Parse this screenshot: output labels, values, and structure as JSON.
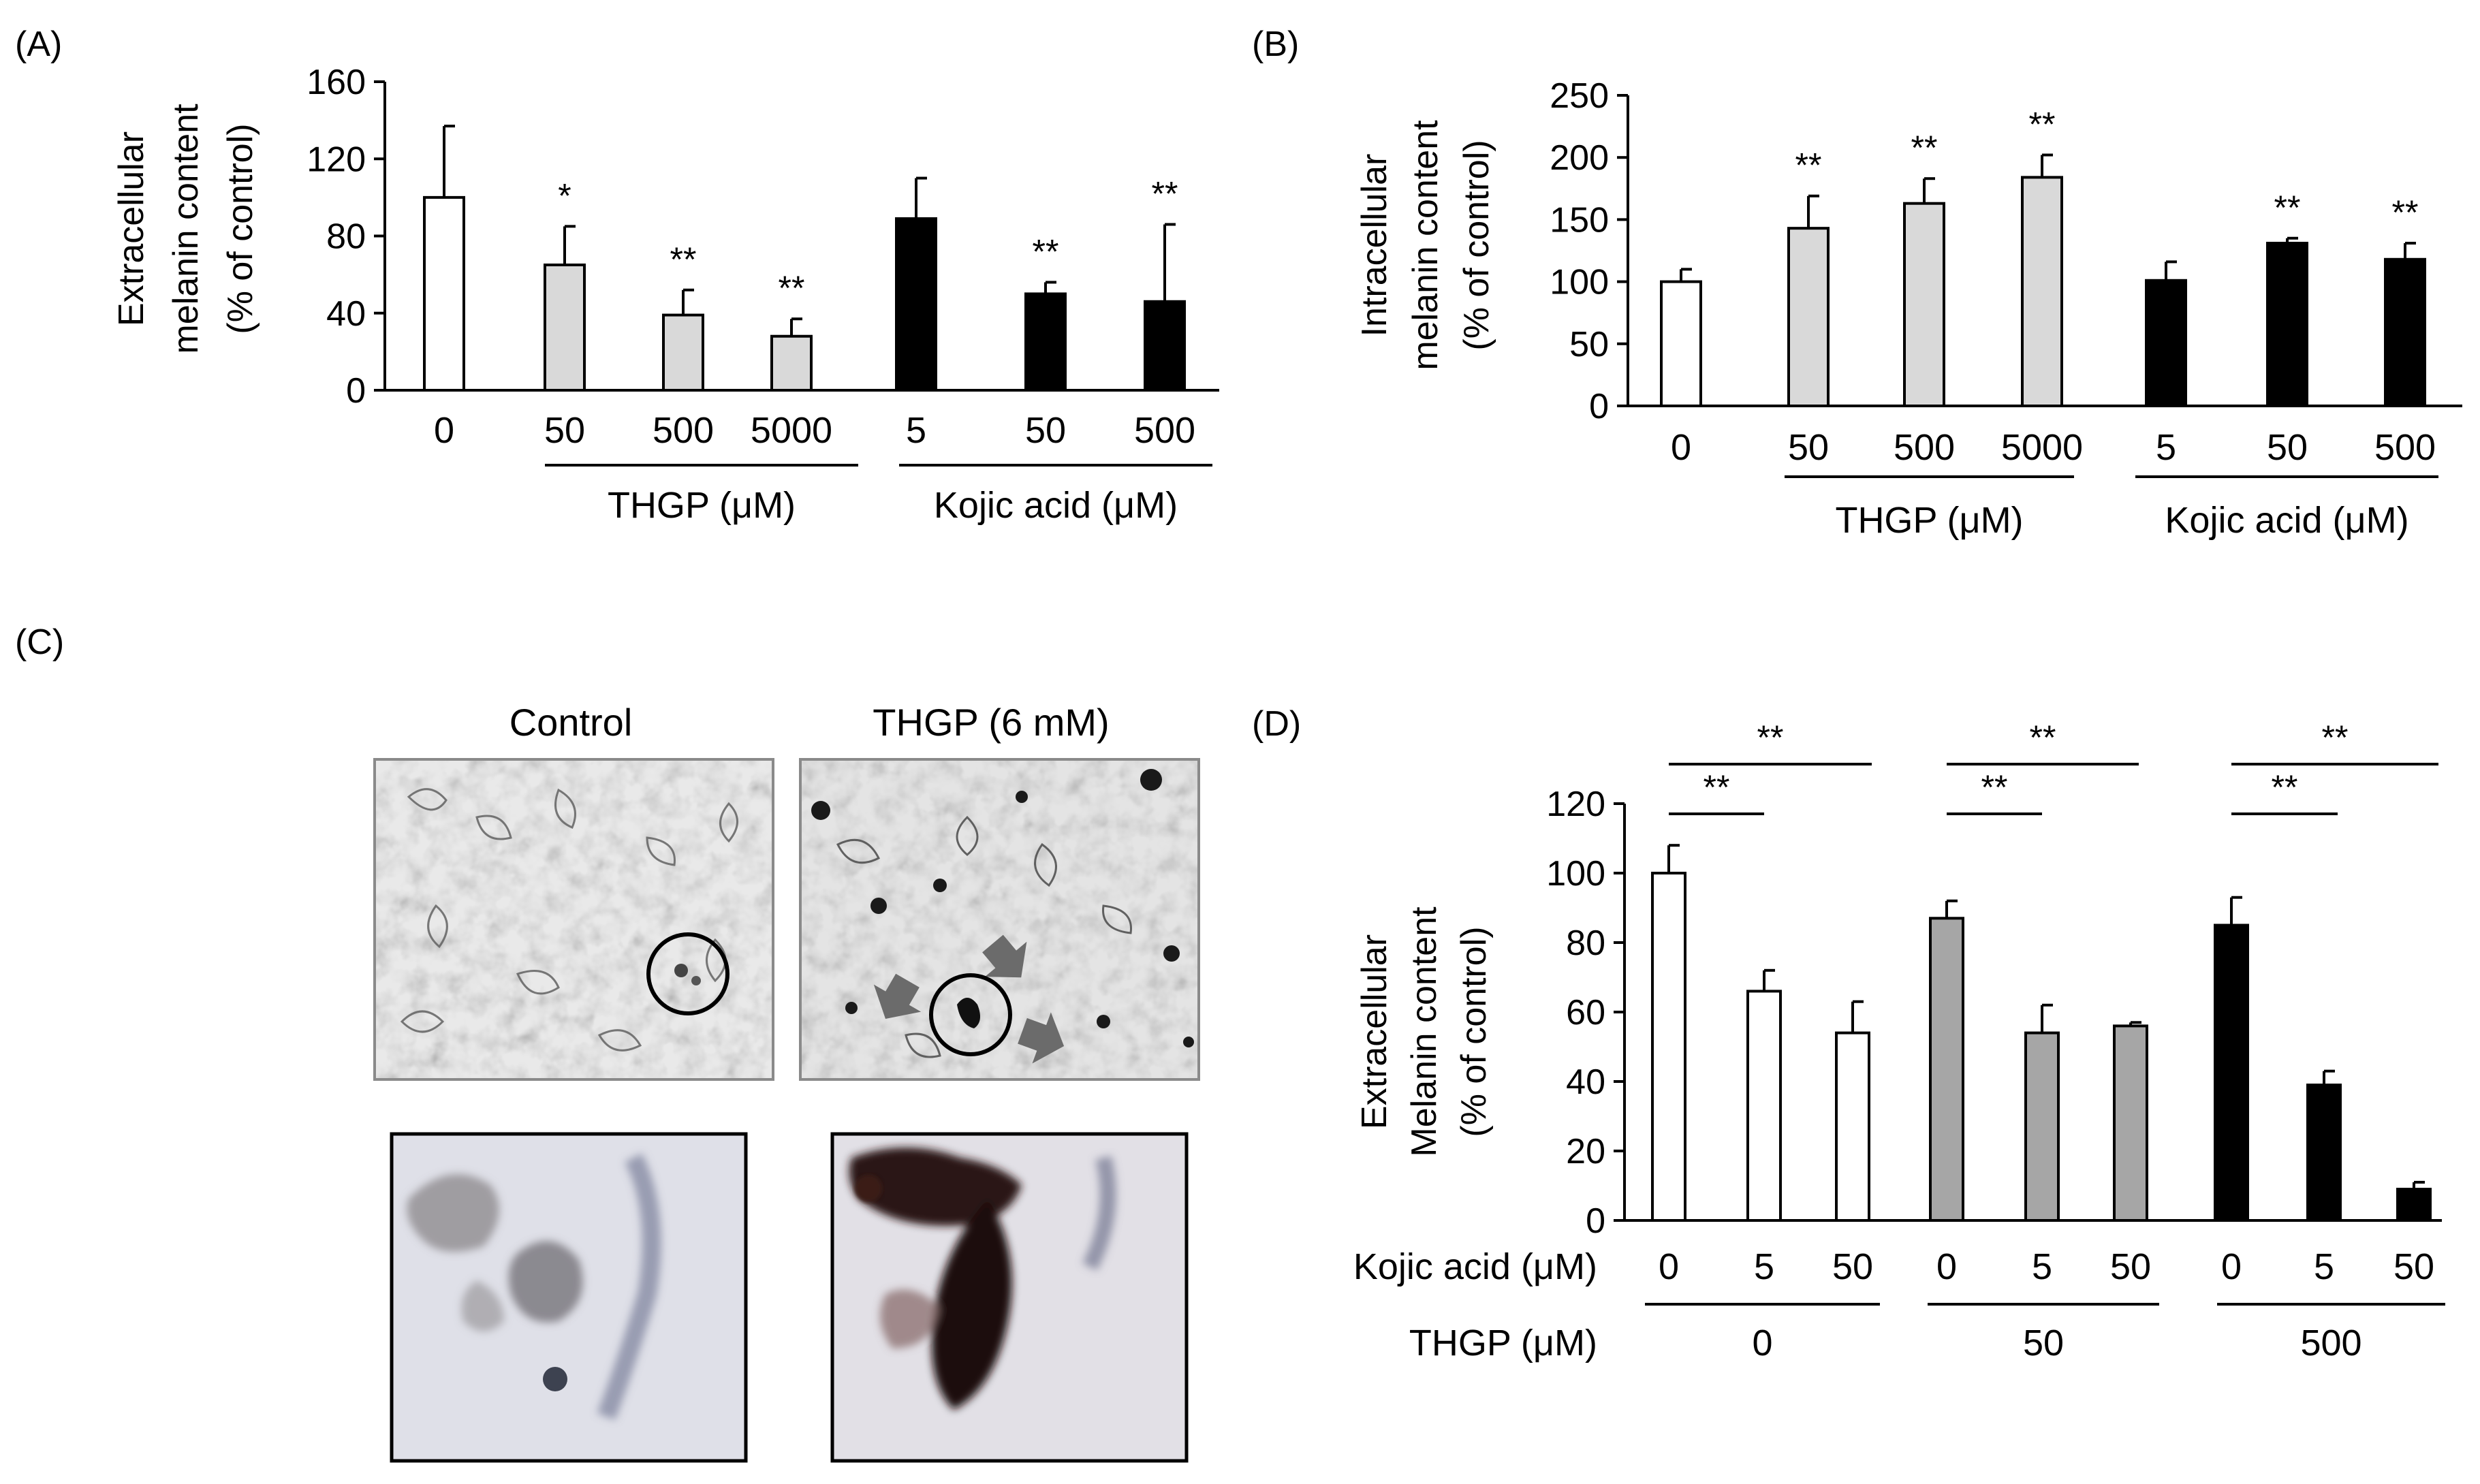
{
  "chart_data": [
    {
      "panel": "(A)",
      "type": "bar",
      "ylabel": [
        "Extracellular",
        "melanin content",
        "(% of control)"
      ],
      "yticks": [
        0,
        40,
        80,
        120,
        160
      ],
      "ylim": [
        0,
        160
      ],
      "categories": [
        "0",
        "50",
        "500",
        "5000",
        "5",
        "50",
        "500"
      ],
      "values": [
        100,
        65,
        39,
        28,
        89,
        50,
        46
      ],
      "errors": [
        37,
        20,
        13,
        9,
        21,
        6,
        40
      ],
      "fills": [
        "#ffffff",
        "#d9d9d9",
        "#d9d9d9",
        "#d9d9d9",
        "#000000",
        "#000000",
        "#000000"
      ],
      "significance": [
        "",
        "*",
        "**",
        "**",
        "",
        "**",
        "**"
      ],
      "groups": [
        {
          "label": "THGP (μM)",
          "from": 1,
          "to": 3
        },
        {
          "label": "Kojic acid (μM)",
          "from": 4,
          "to": 6
        }
      ]
    },
    {
      "panel": "(B)",
      "type": "bar",
      "ylabel": [
        "Intracellular",
        "melanin content",
        "(% of control)"
      ],
      "yticks": [
        0,
        50,
        100,
        150,
        200,
        250
      ],
      "ylim": [
        0,
        250
      ],
      "categories": [
        "0",
        "50",
        "500",
        "5000",
        "5",
        "50",
        "500"
      ],
      "values": [
        100,
        143,
        163,
        184,
        101,
        131,
        118
      ],
      "errors": [
        10,
        26,
        20,
        18,
        15,
        4,
        13
      ],
      "fills": [
        "#ffffff",
        "#d9d9d9",
        "#d9d9d9",
        "#d9d9d9",
        "#000000",
        "#000000",
        "#000000"
      ],
      "significance": [
        "",
        "**",
        "**",
        "**",
        "",
        "**",
        "**"
      ],
      "groups": [
        {
          "label": "THGP (μM)",
          "from": 1,
          "to": 3
        },
        {
          "label": "Kojic acid (μM)",
          "from": 4,
          "to": 6
        }
      ]
    },
    {
      "panel": "(D)",
      "type": "bar",
      "ylabel": [
        "Extracellular",
        "Melanin content",
        "(% of control)"
      ],
      "yticks": [
        0,
        20,
        40,
        60,
        80,
        100,
        120
      ],
      "ylim": [
        0,
        120
      ],
      "row_labels": [
        "Kojic acid (μM)",
        "THGP (μM)"
      ],
      "categories": [
        "0",
        "5",
        "50",
        "0",
        "5",
        "50",
        "0",
        "5",
        "50"
      ],
      "values": [
        100,
        66,
        54,
        87,
        54,
        56,
        85,
        39,
        9
      ],
      "errors": [
        8,
        6,
        9,
        5,
        8,
        1,
        8,
        4,
        2
      ],
      "fills": [
        "#ffffff",
        "#ffffff",
        "#ffffff",
        "#a6a6a6",
        "#a6a6a6",
        "#a6a6a6",
        "#000000",
        "#000000",
        "#000000"
      ],
      "groups": [
        {
          "label": "0",
          "from": 0,
          "to": 2
        },
        {
          "label": "50",
          "from": 3,
          "to": 5
        },
        {
          "label": "500",
          "from": 6,
          "to": 8
        }
      ],
      "brackets": [
        {
          "from": 0,
          "to": 1,
          "label": "**"
        },
        {
          "from": 0,
          "to": 2,
          "label": "**"
        },
        {
          "from": 3,
          "to": 4,
          "label": "**"
        },
        {
          "from": 3,
          "to": 5,
          "label": "**"
        },
        {
          "from": 6,
          "to": 7,
          "label": "**"
        },
        {
          "from": 6,
          "to": 8,
          "label": "**"
        }
      ]
    }
  ],
  "micrographs": {
    "panel": "(C)",
    "control_label": "Control",
    "treated_label": "THGP (6 mM)"
  }
}
